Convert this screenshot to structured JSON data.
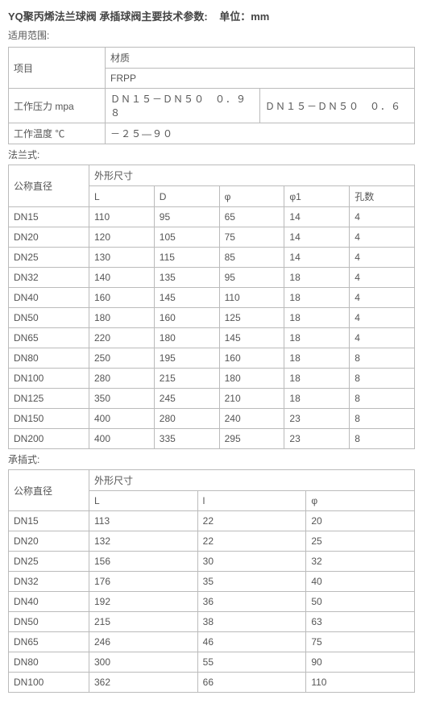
{
  "page": {
    "title_part1": "YQ聚丙烯法兰球阀 承插球阀主要技术参数:",
    "title_part2": "单位：mm",
    "scope_label": "适用范围:",
    "flange_label": "法兰式:",
    "socket_label": "承插式:"
  },
  "table1": {
    "item_label": "项目",
    "material_label": "材质",
    "material_value": "FRPP",
    "wp_label": "工作压力   mpa",
    "wp_v1": "ＤＮ１５－ＤＮ５０　０．９８",
    "wp_v2": "ＤＮ１５－ＤＮ５０　０．６",
    "wt_label": "工作温度   ℃",
    "wt_value": "－２５―９０"
  },
  "table2": {
    "diam_label": "公称直径",
    "dims_label": "外形尺寸",
    "h_L": "L",
    "h_D": "D",
    "h_phi": "φ",
    "h_phi1": "φ1",
    "h_holes": "孔数",
    "r": [
      {
        "d": "DN15",
        "L": "110",
        "D": "95",
        "phi": "65",
        "phi1": "14",
        "holes": "4"
      },
      {
        "d": "DN20",
        "L": "120",
        "D": "105",
        "phi": "75",
        "phi1": "14",
        "holes": "4"
      },
      {
        "d": "DN25",
        "L": "130",
        "D": "115",
        "phi": "85",
        "phi1": "14",
        "holes": "4"
      },
      {
        "d": "DN32",
        "L": "140",
        "D": "135",
        "phi": "95",
        "phi1": "18",
        "holes": "4"
      },
      {
        "d": "DN40",
        "L": "160",
        "D": "145",
        "phi": "110",
        "phi1": "18",
        "holes": "4"
      },
      {
        "d": "DN50",
        "L": "180",
        "D": "160",
        "phi": "125",
        "phi1": "18",
        "holes": "4"
      },
      {
        "d": "DN65",
        "L": "220",
        "D": "180",
        "phi": "145",
        "phi1": "18",
        "holes": "4"
      },
      {
        "d": "DN80",
        "L": "250",
        "D": "195",
        "phi": "160",
        "phi1": "18",
        "holes": "8"
      },
      {
        "d": "DN100",
        "L": "280",
        "D": "215",
        "phi": "180",
        "phi1": "18",
        "holes": "8"
      },
      {
        "d": "DN125",
        "L": "350",
        "D": "245",
        "phi": "210",
        "phi1": "18",
        "holes": "8"
      },
      {
        "d": "DN150",
        "L": "400",
        "D": "280",
        "phi": "240",
        "phi1": "23",
        "holes": "8"
      },
      {
        "d": "DN200",
        "L": "400",
        "D": "335",
        "phi": "295",
        "phi1": "23",
        "holes": "8"
      }
    ]
  },
  "table3": {
    "diam_label": "公称直径",
    "dims_label": "外形尺寸",
    "h_L": "L",
    "h_l": "l",
    "h_phi": "φ",
    "r": [
      {
        "d": "DN15",
        "L": "113",
        "l": "22",
        "phi": "20"
      },
      {
        "d": "DN20",
        "L": "132",
        "l": "22",
        "phi": "25"
      },
      {
        "d": "DN25",
        "L": "156",
        "l": "30",
        "phi": "32"
      },
      {
        "d": "DN32",
        "L": "176",
        "l": "35",
        "phi": "40"
      },
      {
        "d": "DN40",
        "L": "192",
        "l": "36",
        "phi": "50"
      },
      {
        "d": "DN50",
        "L": "215",
        "l": "38",
        "phi": "63"
      },
      {
        "d": "DN65",
        "L": "246",
        "l": "46",
        "phi": "75"
      },
      {
        "d": "DN80",
        "L": "300",
        "l": "55",
        "phi": "90"
      },
      {
        "d": "DN100",
        "L": "362",
        "l": "66",
        "phi": "110"
      }
    ]
  },
  "style": {
    "border_color": "#bbbbbb",
    "text_color": "#555555",
    "background_color": "#ffffff",
    "font_size_pt": 12
  }
}
